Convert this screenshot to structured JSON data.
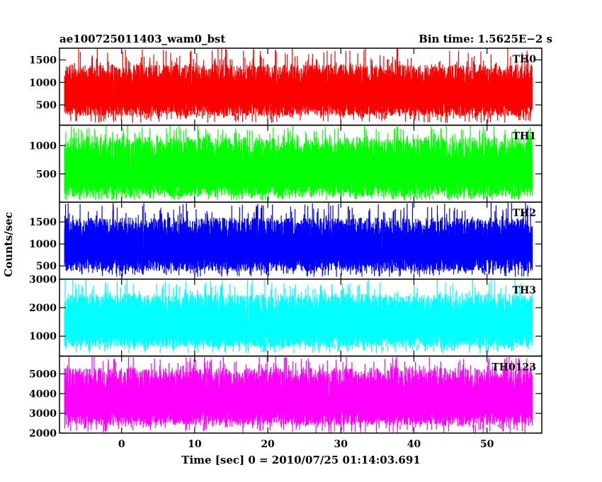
{
  "chart_data": {
    "type": "line",
    "title_left": "ae100725011403_wam0_bst",
    "title_right": "Bin time: 1.5625E−2 s",
    "xlabel": "Time [sec] 0 = 2010/07/25 01:14:03.691",
    "ylabel": "Counts/sec",
    "xlim": [
      -8.5,
      57.5
    ],
    "x_data_range": [
      -7.8,
      56.2
    ],
    "x_ticks": [
      0,
      10,
      20,
      30,
      40,
      50
    ],
    "x_tick_labels": [
      "0",
      "10",
      "20",
      "30",
      "40",
      "50"
    ],
    "grid": false,
    "panels": [
      {
        "label": "TH0",
        "color": "#ff0000",
        "ylim": [
          50,
          1760
        ],
        "y_ticks": [
          500,
          1000,
          1500
        ],
        "y_tick_labels": [
          "500",
          "1000",
          "1500"
        ],
        "typical_range": [
          250,
          1400
        ],
        "extreme_range": [
          100,
          1760
        ]
      },
      {
        "label": "TH1",
        "color": "#00ff00",
        "ylim": [
          0,
          1360
        ],
        "y_ticks": [
          500,
          1000
        ],
        "y_tick_labels": [
          "500",
          "1000"
        ],
        "typical_range": [
          100,
          1150
        ],
        "extreme_range": [
          30,
          1360
        ]
      },
      {
        "label": "TH2",
        "color": "#0000ff",
        "ylim": [
          200,
          1950
        ],
        "y_ticks": [
          500,
          1000,
          1500
        ],
        "y_tick_labels": [
          "500",
          "1000",
          "1500"
        ],
        "typical_range": [
          380,
          1600
        ],
        "extreme_range": [
          250,
          1950
        ]
      },
      {
        "label": "TH3",
        "color": "#00ffff",
        "ylim": [
          300,
          3000
        ],
        "y_ticks": [
          1000,
          2000,
          3000
        ],
        "y_tick_labels": [
          "1000",
          "2000",
          "3000"
        ],
        "typical_range": [
          600,
          2500
        ],
        "extreme_range": [
          400,
          3000
        ]
      },
      {
        "label": "TH0123",
        "color": "#ff00ff",
        "ylim": [
          2000,
          5900
        ],
        "y_ticks": [
          2000,
          3000,
          4000,
          5000
        ],
        "y_tick_labels": [
          "2000",
          "3000",
          "4000",
          "5000"
        ],
        "typical_range": [
          2400,
          5300
        ],
        "extreme_range": [
          2000,
          5900
        ]
      }
    ]
  }
}
